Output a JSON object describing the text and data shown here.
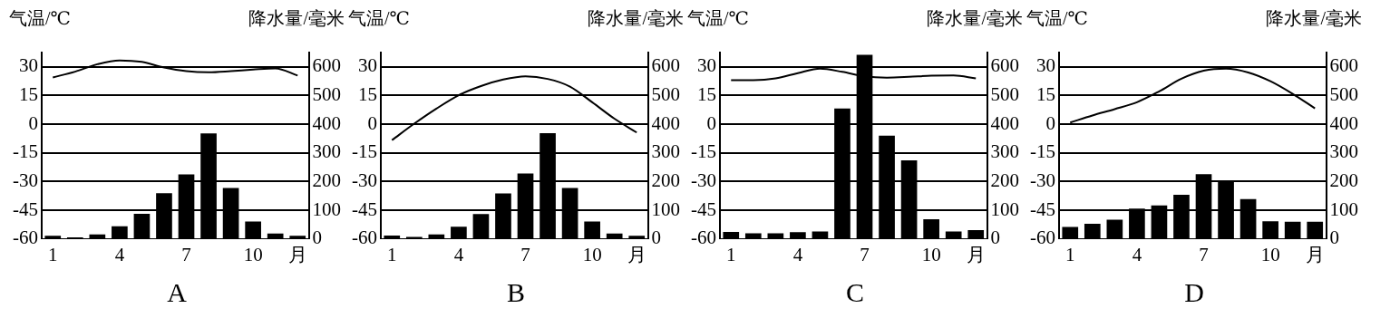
{
  "chart_data": [
    {
      "type": "bar",
      "title": "A",
      "ylabel": "气温/℃",
      "y2label": "降水量/毫米",
      "categories": [
        "1",
        null,
        null,
        "4",
        null,
        null,
        "7",
        null,
        null,
        "10",
        null,
        "月"
      ],
      "ylim": [
        -60,
        37.5
      ],
      "yticks": [
        -60,
        -45,
        -30,
        -15,
        0,
        15,
        30
      ],
      "y2lim": [
        0,
        650
      ],
      "y2ticks": [
        0,
        100,
        200,
        300,
        400,
        500,
        600
      ],
      "grid": "y",
      "legend": false,
      "marker": "none",
      "series": [
        {
          "axis": "y2",
          "color": "#000000",
          "values": [
            11,
            6,
            16,
            44,
            88,
            160,
            225,
            368,
            178,
            61,
            19,
            11
          ]
        },
        {
          "type": "line",
          "axis": "y",
          "color": "#000000",
          "values": [
            24.5,
            27.5,
            31.4,
            33.4,
            32.6,
            29.7,
            27.8,
            27.2,
            27.8,
            28.6,
            29.2,
            25.5
          ]
        }
      ]
    },
    {
      "type": "bar",
      "title": "B",
      "ylabel": "气温/℃",
      "y2label": "降水量/毫米",
      "categories": [
        "1",
        null,
        null,
        "4",
        null,
        null,
        "7",
        null,
        null,
        "10",
        null,
        "月"
      ],
      "ylim": [
        -60,
        37.5
      ],
      "yticks": [
        -60,
        -45,
        -30,
        -15,
        0,
        15,
        30
      ],
      "y2lim": [
        0,
        650
      ],
      "y2ticks": [
        0,
        100,
        200,
        300,
        400,
        500,
        600
      ],
      "grid": "y",
      "legend": false,
      "marker": "none",
      "series": [
        {
          "axis": "y2",
          "color": "#000000",
          "values": [
            12,
            7,
            16,
            43,
            87,
            159,
            228,
            369,
            178,
            61,
            19,
            11
          ]
        },
        {
          "type": "line",
          "axis": "y",
          "color": "#000000",
          "values": [
            -8.3,
            0.3,
            8.2,
            15.2,
            20,
            23.4,
            25.1,
            23.7,
            19.7,
            11.5,
            2.9,
            -4.3
          ]
        }
      ]
    },
    {
      "type": "bar",
      "title": "C",
      "ylabel": "气温/℃",
      "y2label": "降水量/毫米",
      "categories": [
        "1",
        null,
        null,
        "4",
        null,
        null,
        "7",
        null,
        null,
        "10",
        null,
        "月"
      ],
      "ylim": [
        -60,
        37.5
      ],
      "yticks": [
        -60,
        -45,
        -30,
        -15,
        0,
        15,
        30
      ],
      "y2lim": [
        0,
        650
      ],
      "y2ticks": [
        0,
        100,
        200,
        300,
        400,
        500,
        600
      ],
      "grid": "y",
      "legend": false,
      "marker": "none",
      "series": [
        {
          "axis": "y2",
          "color": "#000000",
          "values": [
            25,
            20,
            20,
            24,
            26,
            455,
            642,
            360,
            274,
            69,
            26,
            31
          ]
        },
        {
          "type": "line",
          "axis": "y",
          "color": "#000000",
          "values": [
            23.1,
            23.1,
            24,
            26.7,
            29.1,
            27.4,
            25.1,
            24.4,
            24.8,
            25.4,
            25.5,
            24
          ]
        }
      ]
    },
    {
      "type": "bar",
      "title": "D",
      "ylabel": "气温/℃",
      "y2label": "降水量/毫米",
      "categories": [
        "1",
        null,
        null,
        "4",
        null,
        null,
        "7",
        null,
        null,
        "10",
        null,
        "月"
      ],
      "ylim": [
        -60,
        37.5
      ],
      "yticks": [
        -60,
        -45,
        -30,
        -15,
        0,
        15,
        30
      ],
      "y2lim": [
        0,
        650
      ],
      "y2ticks": [
        0,
        100,
        200,
        300,
        400,
        500,
        600
      ],
      "grid": "y",
      "legend": false,
      "marker": "none",
      "series": [
        {
          "axis": "y2",
          "color": "#000000",
          "values": [
            42,
            53,
            67,
            106,
            117,
            154,
            226,
            203,
            139,
            62,
            60,
            60
          ]
        },
        {
          "type": "line",
          "axis": "y",
          "color": "#000000",
          "values": [
            0.9,
            4.6,
            7.9,
            11.5,
            17.2,
            23.8,
            28,
            29.1,
            27.1,
            22.5,
            15.9,
            8.3
          ]
        }
      ]
    }
  ]
}
